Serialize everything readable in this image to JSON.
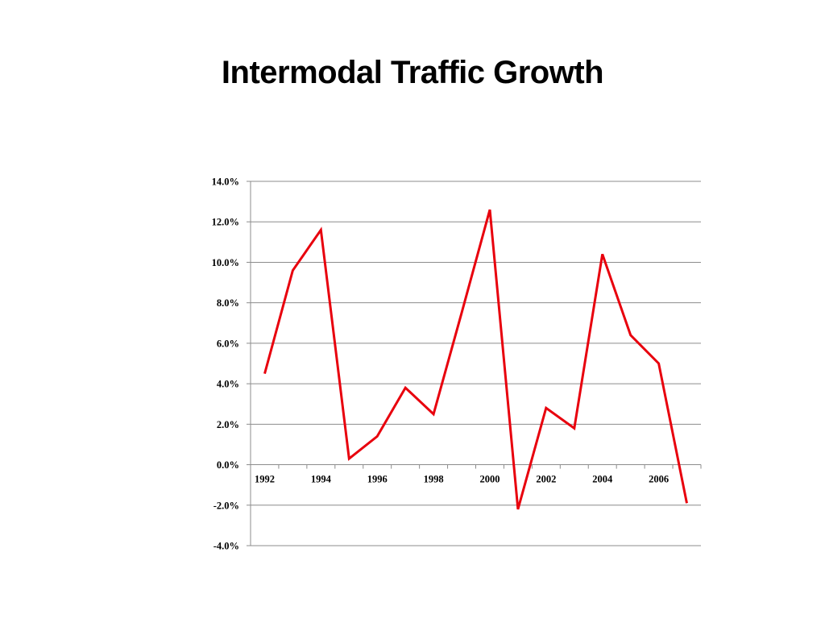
{
  "slide": {
    "title": "Intermodal Traffic Growth"
  },
  "chart_data": {
    "type": "line",
    "title": "",
    "xlabel": "",
    "ylabel": "",
    "x": [
      1992,
      1993,
      1994,
      1995,
      1996,
      1997,
      1998,
      1999,
      2000,
      2001,
      2002,
      2003,
      2004,
      2005,
      2006,
      2007
    ],
    "x_tick_labels": [
      "1992",
      "1994",
      "1996",
      "1998",
      "2000",
      "2002",
      "2004",
      "2006"
    ],
    "series": [
      {
        "values": [
          4.5,
          9.6,
          11.6,
          0.3,
          1.4,
          3.8,
          2.5,
          7.5,
          12.6,
          -2.2,
          2.8,
          1.8,
          10.4,
          6.4,
          5.0,
          -1.9
        ],
        "color": "#e8000d"
      }
    ],
    "y_tick_labels": [
      "14.0%",
      "12.0%",
      "10.0%",
      "8.0%",
      "6.0%",
      "4.0%",
      "2.0%",
      "0.0%",
      "-2.0%",
      "-4.0%"
    ],
    "ylim": [
      -4.0,
      14.0
    ],
    "y_tick_step": 2.0,
    "grid": true,
    "legend": "none"
  }
}
